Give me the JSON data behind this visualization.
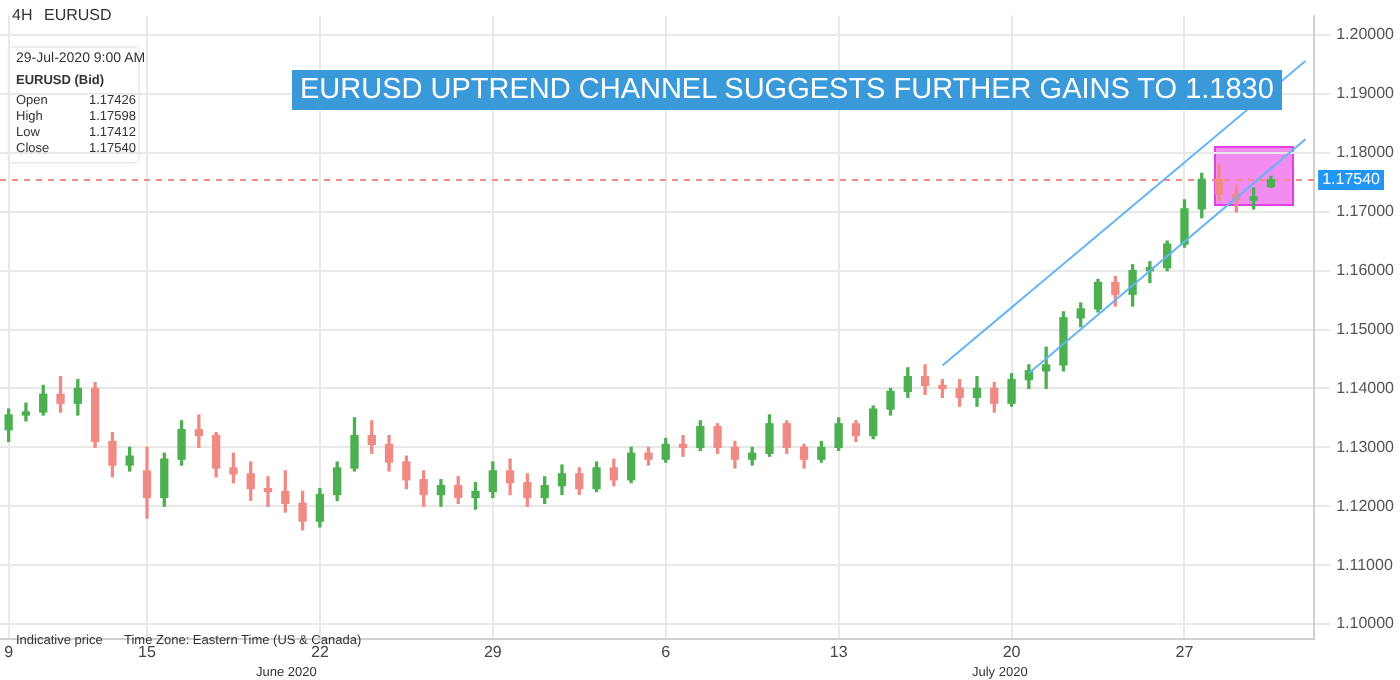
{
  "chart_data": {
    "type": "candlestick",
    "title": "EURUSD UPTREND CHANNEL SUGGESTS FURTHER GAINS TO 1.1830",
    "categories": [
      "9",
      null,
      null,
      null,
      null,
      null,
      null,
      null,
      "15",
      null,
      null,
      null,
      null,
      null,
      null,
      null,
      null,
      null,
      "22",
      null,
      null,
      null,
      null,
      null,
      null,
      null,
      null,
      null,
      "29",
      null,
      null,
      null,
      null,
      null,
      null,
      null,
      null,
      null,
      "6",
      null,
      null,
      null,
      null,
      null,
      null,
      null,
      null,
      null,
      "13",
      null,
      null,
      null,
      null,
      null,
      null,
      null,
      null,
      null,
      "20",
      null,
      null,
      null,
      null,
      null,
      null,
      null,
      null,
      null,
      "27",
      null,
      null,
      null,
      null,
      null,
      null,
      null
    ],
    "ohlc": [
      [
        1.133,
        1.1365,
        1.131,
        1.1355
      ],
      [
        1.1355,
        1.1375,
        1.1345,
        1.136
      ],
      [
        1.136,
        1.1405,
        1.1355,
        1.139
      ],
      [
        1.139,
        1.142,
        1.136,
        1.1375
      ],
      [
        1.1375,
        1.1415,
        1.1355,
        1.14
      ],
      [
        1.14,
        1.141,
        1.13,
        1.131
      ],
      [
        1.131,
        1.1325,
        1.125,
        1.127
      ],
      [
        1.127,
        1.13,
        1.126,
        1.1285
      ],
      [
        1.126,
        1.13,
        1.118,
        1.1215
      ],
      [
        1.1215,
        1.129,
        1.12,
        1.128
      ],
      [
        1.128,
        1.1345,
        1.127,
        1.133
      ],
      [
        1.133,
        1.1355,
        1.13,
        1.132
      ],
      [
        1.132,
        1.1325,
        1.125,
        1.1265
      ],
      [
        1.1265,
        1.129,
        1.124,
        1.1255
      ],
      [
        1.1255,
        1.1275,
        1.121,
        1.123
      ],
      [
        1.123,
        1.125,
        1.12,
        1.1225
      ],
      [
        1.1225,
        1.126,
        1.119,
        1.1205
      ],
      [
        1.1205,
        1.1225,
        1.116,
        1.1175
      ],
      [
        1.1175,
        1.123,
        1.1165,
        1.122
      ],
      [
        1.122,
        1.1275,
        1.121,
        1.1265
      ],
      [
        1.1265,
        1.135,
        1.126,
        1.132
      ],
      [
        1.132,
        1.1345,
        1.129,
        1.1305
      ],
      [
        1.1305,
        1.132,
        1.126,
        1.1275
      ],
      [
        1.1275,
        1.1285,
        1.123,
        1.1245
      ],
      [
        1.1245,
        1.126,
        1.12,
        1.122
      ],
      [
        1.122,
        1.1245,
        1.12,
        1.1235
      ],
      [
        1.1235,
        1.125,
        1.1205,
        1.1215
      ],
      [
        1.1215,
        1.124,
        1.1195,
        1.1225
      ],
      [
        1.1225,
        1.1275,
        1.1215,
        1.126
      ],
      [
        1.126,
        1.128,
        1.122,
        1.124
      ],
      [
        1.124,
        1.1255,
        1.12,
        1.1215
      ],
      [
        1.1215,
        1.125,
        1.1205,
        1.1235
      ],
      [
        1.1235,
        1.127,
        1.122,
        1.1255
      ],
      [
        1.1255,
        1.1265,
        1.122,
        1.123
      ],
      [
        1.123,
        1.1275,
        1.1225,
        1.1265
      ],
      [
        1.1265,
        1.128,
        1.1235,
        1.1245
      ],
      [
        1.1245,
        1.13,
        1.124,
        1.129
      ],
      [
        1.129,
        1.13,
        1.127,
        1.128
      ],
      [
        1.128,
        1.1315,
        1.1275,
        1.1305
      ],
      [
        1.1305,
        1.132,
        1.1285,
        1.13
      ],
      [
        1.13,
        1.1345,
        1.1295,
        1.1335
      ],
      [
        1.1335,
        1.134,
        1.129,
        1.13
      ],
      [
        1.13,
        1.131,
        1.1265,
        1.128
      ],
      [
        1.128,
        1.13,
        1.127,
        1.129
      ],
      [
        1.129,
        1.1355,
        1.1285,
        1.134
      ],
      [
        1.134,
        1.1345,
        1.129,
        1.13
      ],
      [
        1.13,
        1.1305,
        1.1265,
        1.128
      ],
      [
        1.128,
        1.131,
        1.1275,
        1.13
      ],
      [
        1.13,
        1.135,
        1.1295,
        1.134
      ],
      [
        1.134,
        1.1345,
        1.131,
        1.132
      ],
      [
        1.132,
        1.137,
        1.1315,
        1.1365
      ],
      [
        1.1365,
        1.14,
        1.1355,
        1.1395
      ],
      [
        1.1395,
        1.1435,
        1.1385,
        1.142
      ],
      [
        1.142,
        1.144,
        1.139,
        1.1405
      ],
      [
        1.1405,
        1.1415,
        1.1385,
        1.14
      ],
      [
        1.14,
        1.1415,
        1.137,
        1.1385
      ],
      [
        1.1385,
        1.142,
        1.137,
        1.14
      ],
      [
        1.14,
        1.141,
        1.136,
        1.1375
      ],
      [
        1.1375,
        1.1425,
        1.137,
        1.1415
      ],
      [
        1.1415,
        1.144,
        1.14,
        1.143
      ],
      [
        1.143,
        1.147,
        1.14,
        1.144
      ],
      [
        1.144,
        1.153,
        1.143,
        1.152
      ],
      [
        1.152,
        1.1545,
        1.1505,
        1.1535
      ],
      [
        1.1535,
        1.1585,
        1.153,
        1.158
      ],
      [
        1.158,
        1.159,
        1.154,
        1.156
      ],
      [
        1.156,
        1.161,
        1.154,
        1.16
      ],
      [
        1.16,
        1.1615,
        1.158,
        1.1605
      ],
      [
        1.1605,
        1.165,
        1.16,
        1.1645
      ],
      [
        1.1645,
        1.172,
        1.164,
        1.1705
      ],
      [
        1.1705,
        1.1765,
        1.169,
        1.1755
      ],
      [
        1.1755,
        1.178,
        1.172,
        1.173
      ],
      [
        1.173,
        1.1745,
        1.17,
        1.172
      ],
      [
        1.172,
        1.174,
        1.1705,
        1.1725
      ],
      [
        1.17426,
        1.17598,
        1.17412,
        1.1754
      ],
      null,
      null
    ],
    "colors": [
      "#4caf50",
      "#4caf50",
      "#4caf50",
      "#f08a85",
      "#4caf50",
      "#f08a85",
      "#f08a85",
      "#4caf50",
      "#f08a85",
      "#4caf50",
      "#4caf50",
      "#f08a85",
      "#f08a85",
      "#f08a85",
      "#f08a85",
      "#f08a85",
      "#f08a85",
      "#f08a85",
      "#4caf50",
      "#4caf50",
      "#4caf50",
      "#f08a85",
      "#f08a85",
      "#f08a85",
      "#f08a85",
      "#4caf50",
      "#f08a85",
      "#4caf50",
      "#4caf50",
      "#f08a85",
      "#f08a85",
      "#4caf50",
      "#4caf50",
      "#f08a85",
      "#4caf50",
      "#f08a85",
      "#4caf50",
      "#f08a85",
      "#4caf50",
      "#f08a85",
      "#4caf50",
      "#f08a85",
      "#f08a85",
      "#4caf50",
      "#4caf50",
      "#f08a85",
      "#f08a85",
      "#4caf50",
      "#4caf50",
      "#f08a85",
      "#4caf50",
      "#4caf50",
      "#4caf50",
      "#f08a85",
      "#f08a85",
      "#f08a85",
      "#4caf50",
      "#f08a85",
      "#4caf50",
      "#4caf50",
      "#4caf50",
      "#4caf50",
      "#4caf50",
      "#4caf50",
      "#f08a85",
      "#4caf50",
      "#4caf50",
      "#4caf50",
      "#4caf50",
      "#4caf50",
      "#f08a85",
      "#f08a85",
      "#4caf50",
      "#4caf50",
      null,
      null
    ],
    "series": [
      {
        "type": "line",
        "color": "#64b5f6",
        "values": [
          null,
          null,
          null,
          null,
          null,
          null,
          null,
          null,
          null,
          null,
          null,
          null,
          null,
          null,
          null,
          null,
          null,
          null,
          null,
          null,
          null,
          null,
          null,
          null,
          null,
          null,
          null,
          null,
          null,
          null,
          null,
          null,
          null,
          null,
          null,
          null,
          null,
          null,
          null,
          null,
          null,
          null,
          null,
          null,
          null,
          null,
          null,
          null,
          null,
          null,
          null,
          null,
          null,
          null,
          1.1439,
          null,
          null,
          null,
          null,
          null,
          null,
          null,
          null,
          null,
          null,
          null,
          null,
          null,
          null,
          null,
          null,
          null,
          null,
          null,
          null,
          1.1956
        ]
      },
      {
        "type": "line",
        "color": "#64b5f6",
        "values": [
          null,
          null,
          null,
          null,
          null,
          null,
          null,
          null,
          null,
          null,
          null,
          null,
          null,
          null,
          null,
          null,
          null,
          null,
          null,
          null,
          null,
          null,
          null,
          null,
          null,
          null,
          null,
          null,
          null,
          null,
          null,
          null,
          null,
          null,
          null,
          null,
          null,
          null,
          null,
          null,
          null,
          null,
          null,
          null,
          null,
          null,
          null,
          null,
          null,
          null,
          null,
          null,
          null,
          null,
          null,
          null,
          null,
          null,
          null,
          1.1426,
          null,
          null,
          null,
          null,
          null,
          null,
          null,
          null,
          null,
          null,
          null,
          null,
          null,
          null,
          null,
          1.1823
        ]
      }
    ],
    "ylim": [
      1.0975,
      1.2033
    ],
    "yticks": [
      {
        "value": 1.1,
        "label": "1.10000"
      },
      {
        "value": 1.11,
        "label": "1.11000"
      },
      {
        "value": 1.12,
        "label": "1.12000"
      },
      {
        "value": 1.13,
        "label": "1.13000"
      },
      {
        "value": 1.14,
        "label": "1.14000"
      },
      {
        "value": 1.15,
        "label": "1.15000"
      },
      {
        "value": 1.16,
        "label": "1.16000"
      },
      {
        "value": 1.17,
        "label": "1.17000"
      },
      {
        "value": 1.18,
        "label": "1.18000"
      },
      {
        "value": 1.19,
        "label": "1.19000"
      },
      {
        "value": 1.2,
        "label": "1.20000"
      }
    ],
    "ref_lines": [
      {
        "axis": "y",
        "value": 1.1754,
        "label": "1.17540",
        "color": "#f28b82",
        "line_style": "dashed"
      }
    ],
    "grid": true,
    "legend": false,
    "annotations": [
      "4H",
      "EURUSD",
      "29-Jul-2020 9:00 AM",
      "EURUSD (Bid)",
      "Open",
      "1.17426",
      "High",
      "1.17598",
      "Low",
      "1.17412",
      "Close",
      "1.17540",
      "Indicative price",
      "Time Zone: Eastern Time (US & Canada)",
      "June 2020",
      "July 2020"
    ]
  }
}
